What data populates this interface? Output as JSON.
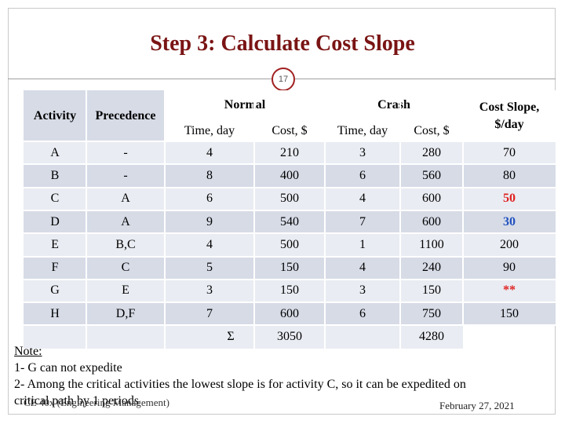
{
  "slide": {
    "title": "Step 3: Calculate Cost Slope",
    "page_number": "17"
  },
  "table": {
    "headers": {
      "activity": "Activity",
      "precedence": "Precedence",
      "normal": "Normal",
      "crash": "Crash",
      "normal_time": "Time, day",
      "normal_cost": "Cost, $",
      "crash_time": "Time, day",
      "crash_cost": "Cost, $",
      "slope": "Cost Slope, $/day"
    },
    "rows": [
      {
        "activity": "A",
        "precedence": "-",
        "normal_time": "4",
        "normal_cost": "210",
        "crash_time": "3",
        "crash_cost": "280",
        "slope": "70",
        "slope_style": "normal"
      },
      {
        "activity": "B",
        "precedence": "-",
        "normal_time": "8",
        "normal_cost": "400",
        "crash_time": "6",
        "crash_cost": "560",
        "slope": "80",
        "slope_style": "normal"
      },
      {
        "activity": "C",
        "precedence": "A",
        "normal_time": "6",
        "normal_cost": "500",
        "crash_time": "4",
        "crash_cost": "600",
        "slope": "50",
        "slope_style": "red"
      },
      {
        "activity": "D",
        "precedence": "A",
        "normal_time": "9",
        "normal_cost": "540",
        "crash_time": "7",
        "crash_cost": "600",
        "slope": "30",
        "slope_style": "blue"
      },
      {
        "activity": "E",
        "precedence": "B,C",
        "normal_time": "4",
        "normal_cost": "500",
        "crash_time": "1",
        "crash_cost": "1100",
        "slope": "200",
        "slope_style": "normal"
      },
      {
        "activity": "F",
        "precedence": "C",
        "normal_time": "5",
        "normal_cost": "150",
        "crash_time": "4",
        "crash_cost": "240",
        "slope": "90",
        "slope_style": "normal"
      },
      {
        "activity": "G",
        "precedence": "E",
        "normal_time": "3",
        "normal_cost": "150",
        "crash_time": "3",
        "crash_cost": "150",
        "slope": "**",
        "slope_style": "red"
      },
      {
        "activity": "H",
        "precedence": "D,F",
        "normal_time": "7",
        "normal_cost": "600",
        "crash_time": "6",
        "crash_cost": "750",
        "slope": "150",
        "slope_style": "normal"
      }
    ],
    "totals": {
      "symbol": "Σ",
      "normal_cost": "3050",
      "crash_cost": "4280"
    }
  },
  "notes": {
    "title": "Note:",
    "line1": "1- G can not expedite",
    "line2": "2- Among the critical activities the lowest slope is for activity C, so it can be expedited on",
    "line3": "critical path by 1 periods"
  },
  "footer": {
    "left": "CE 40x (Engineering Management)",
    "date": "February 27, 2021"
  }
}
